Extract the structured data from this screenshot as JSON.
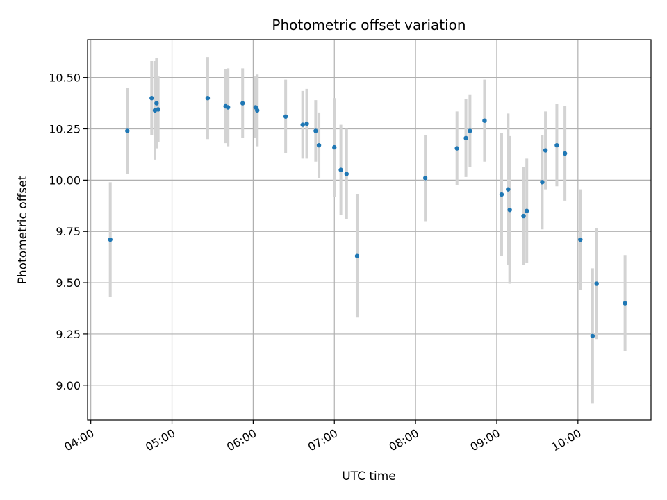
{
  "chart_data": {
    "type": "scatter",
    "title": "Photometric offset variation",
    "xlabel": "UTC time",
    "ylabel": "Photometric offset",
    "x_unit": "hours UTC",
    "xlim": [
      3.96,
      10.9
    ],
    "ylim": [
      8.83,
      10.685
    ],
    "x_ticks": [
      4,
      5,
      6,
      7,
      8,
      9,
      10
    ],
    "x_tick_labels": [
      "04:00",
      "05:00",
      "06:00",
      "07:00",
      "08:00",
      "09:00",
      "10:00"
    ],
    "y_ticks": [
      9.0,
      9.25,
      9.5,
      9.75,
      10.0,
      10.25,
      10.5
    ],
    "y_tick_labels": [
      "9.00",
      "9.25",
      "9.50",
      "9.75",
      "10.00",
      "10.25",
      "10.50"
    ],
    "grid": true,
    "colors": {
      "marker": "#1f77b4",
      "errorbar": "#d3d3d3",
      "grid": "#b0b0b0",
      "axes": "#000000"
    },
    "points": [
      {
        "x": 4.24,
        "y": 9.71,
        "err": 0.28
      },
      {
        "x": 4.45,
        "y": 10.24,
        "err": 0.21
      },
      {
        "x": 4.75,
        "y": 10.4,
        "err": 0.18
      },
      {
        "x": 4.79,
        "y": 10.34,
        "err": 0.24
      },
      {
        "x": 4.81,
        "y": 10.375,
        "err": 0.22
      },
      {
        "x": 4.83,
        "y": 10.345,
        "err": 0.16
      },
      {
        "x": 5.44,
        "y": 10.4,
        "err": 0.2
      },
      {
        "x": 5.66,
        "y": 10.36,
        "err": 0.18
      },
      {
        "x": 5.69,
        "y": 10.355,
        "err": 0.19
      },
      {
        "x": 5.87,
        "y": 10.375,
        "err": 0.17
      },
      {
        "x": 6.03,
        "y": 10.355,
        "err": 0.15
      },
      {
        "x": 6.05,
        "y": 10.34,
        "err": 0.175
      },
      {
        "x": 6.4,
        "y": 10.31,
        "err": 0.18
      },
      {
        "x": 6.61,
        "y": 10.27,
        "err": 0.165
      },
      {
        "x": 6.66,
        "y": 10.275,
        "err": 0.17
      },
      {
        "x": 6.77,
        "y": 10.24,
        "err": 0.15
      },
      {
        "x": 6.81,
        "y": 10.17,
        "err": 0.16
      },
      {
        "x": 7.0,
        "y": 10.16,
        "err": 0.24
      },
      {
        "x": 7.08,
        "y": 10.05,
        "err": 0.22
      },
      {
        "x": 7.15,
        "y": 10.03,
        "err": 0.22
      },
      {
        "x": 7.28,
        "y": 9.63,
        "err": 0.3
      },
      {
        "x": 8.12,
        "y": 10.01,
        "err": 0.21
      },
      {
        "x": 8.51,
        "y": 10.155,
        "err": 0.18
      },
      {
        "x": 8.62,
        "y": 10.205,
        "err": 0.19
      },
      {
        "x": 8.67,
        "y": 10.24,
        "err": 0.175
      },
      {
        "x": 8.85,
        "y": 10.29,
        "err": 0.2
      },
      {
        "x": 9.06,
        "y": 9.93,
        "err": 0.3
      },
      {
        "x": 9.14,
        "y": 9.955,
        "err": 0.37
      },
      {
        "x": 9.16,
        "y": 9.855,
        "err": 0.36
      },
      {
        "x": 9.33,
        "y": 9.825,
        "err": 0.24
      },
      {
        "x": 9.37,
        "y": 9.85,
        "err": 0.255
      },
      {
        "x": 9.56,
        "y": 9.99,
        "err": 0.23
      },
      {
        "x": 9.6,
        "y": 10.145,
        "err": 0.19
      },
      {
        "x": 9.74,
        "y": 10.17,
        "err": 0.2
      },
      {
        "x": 9.84,
        "y": 10.13,
        "err": 0.23
      },
      {
        "x": 10.03,
        "y": 9.71,
        "err": 0.245
      },
      {
        "x": 10.18,
        "y": 9.24,
        "err": 0.33
      },
      {
        "x": 10.23,
        "y": 9.495,
        "err": 0.27
      },
      {
        "x": 10.58,
        "y": 9.4,
        "err": 0.235
      }
    ]
  }
}
